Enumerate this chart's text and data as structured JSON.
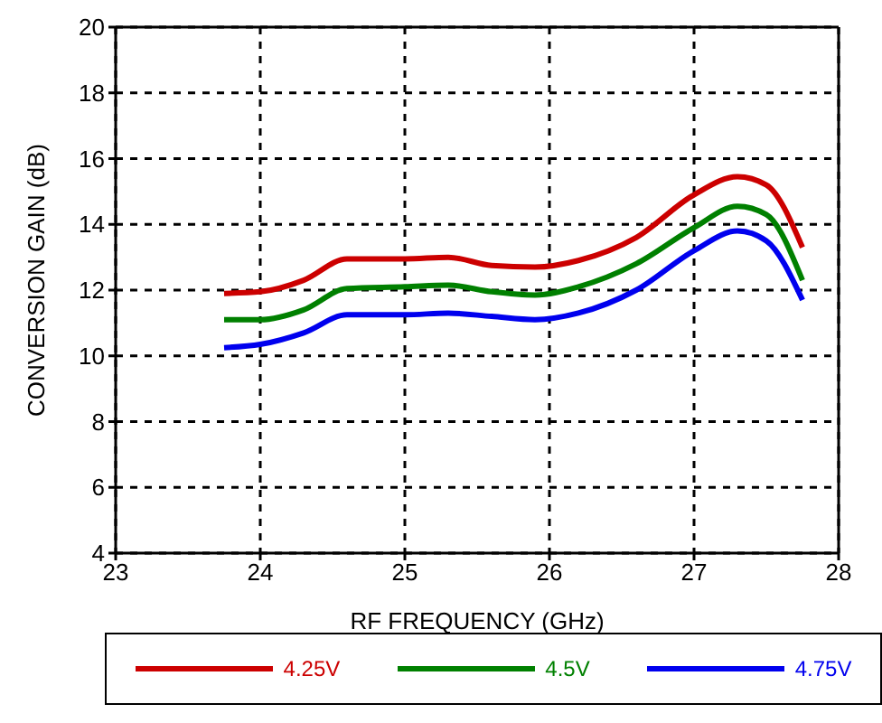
{
  "chart_data": {
    "type": "line",
    "xlabel": "RF FREQUENCY (GHz)",
    "ylabel": "CONVERSION GAIN (dB)",
    "xlim": [
      23,
      28
    ],
    "xticks": [
      23,
      24,
      25,
      26,
      27,
      28
    ],
    "ylim": [
      4,
      20
    ],
    "yticks": [
      4,
      6,
      8,
      10,
      12,
      14,
      16,
      18,
      20
    ],
    "grid": true,
    "legend": "bottom",
    "marker": "none",
    "line_style": "solid",
    "x": [
      23.75,
      24,
      24.3,
      24.6,
      25,
      25.3,
      25.6,
      25.9,
      26.2,
      26.6,
      27,
      27.3,
      27.5,
      27.75
    ],
    "series": [
      {
        "name": "4.25V",
        "color": "#cc0000",
        "values": [
          11.9,
          11.95,
          12.3,
          12.95,
          12.95,
          13.0,
          12.75,
          12.7,
          12.9,
          13.6,
          14.9,
          15.45,
          15.2,
          13.3
        ]
      },
      {
        "name": "4.5V",
        "color": "#008000",
        "values": [
          11.1,
          11.1,
          11.4,
          12.05,
          12.1,
          12.15,
          11.95,
          11.85,
          12.1,
          12.8,
          13.9,
          14.55,
          14.3,
          12.3
        ]
      },
      {
        "name": "4.75V",
        "color": "#0000ee",
        "values": [
          10.25,
          10.35,
          10.7,
          11.25,
          11.25,
          11.3,
          11.2,
          11.1,
          11.3,
          12.0,
          13.2,
          13.8,
          13.5,
          11.7
        ]
      }
    ]
  }
}
